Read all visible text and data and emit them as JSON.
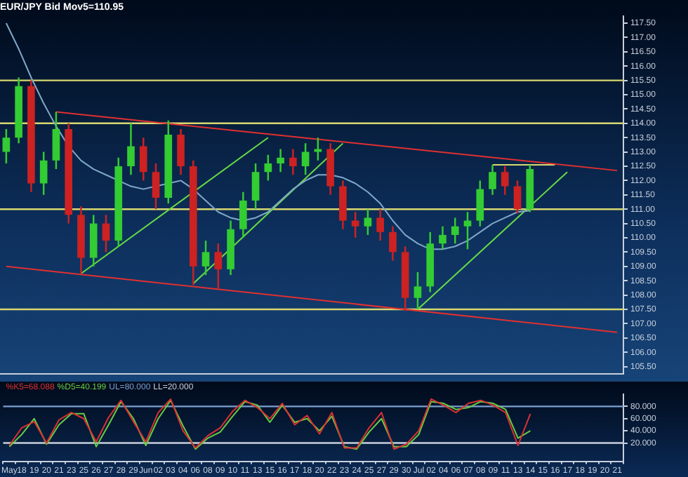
{
  "chart_data": [
    {
      "type": "candlestick",
      "title": "EUR/JPY Bid Mov5=110.95",
      "ohlc": [
        [
          113.0,
          113.8,
          112.6,
          113.5
        ],
        [
          113.5,
          115.6,
          113.3,
          115.3
        ],
        [
          115.3,
          115.5,
          111.6,
          111.9
        ],
        [
          111.9,
          113.0,
          111.5,
          112.7
        ],
        [
          112.7,
          114.4,
          112.4,
          113.8
        ],
        [
          113.8,
          114.0,
          110.5,
          110.8
        ],
        [
          110.8,
          111.1,
          108.75,
          109.3
        ],
        [
          109.3,
          110.8,
          109.0,
          110.5
        ],
        [
          110.5,
          110.8,
          109.5,
          109.9
        ],
        [
          109.9,
          112.8,
          109.7,
          112.5
        ],
        [
          112.5,
          114.0,
          112.2,
          113.2
        ],
        [
          113.2,
          113.5,
          112.0,
          112.3
        ],
        [
          112.3,
          112.6,
          111.0,
          111.4
        ],
        [
          111.4,
          114.1,
          111.2,
          113.6
        ],
        [
          113.6,
          113.8,
          112.2,
          112.5
        ],
        [
          112.5,
          112.7,
          108.35,
          109.0
        ],
        [
          109.0,
          109.9,
          108.7,
          109.5
        ],
        [
          109.5,
          109.8,
          108.2,
          108.9
        ],
        [
          108.9,
          110.6,
          108.7,
          110.3
        ],
        [
          110.3,
          111.6,
          110.0,
          111.3
        ],
        [
          111.3,
          112.6,
          111.0,
          112.3
        ],
        [
          112.3,
          112.9,
          112.0,
          112.6
        ],
        [
          112.6,
          113.1,
          112.3,
          112.8
        ],
        [
          112.8,
          113.1,
          112.2,
          112.5
        ],
        [
          112.5,
          113.3,
          112.2,
          113.0
        ],
        [
          113.0,
          113.5,
          112.7,
          113.1
        ],
        [
          113.1,
          113.3,
          111.5,
          111.8
        ],
        [
          111.8,
          112.0,
          110.3,
          110.6
        ],
        [
          110.6,
          110.9,
          110.0,
          110.4
        ],
        [
          110.4,
          111.0,
          110.1,
          110.7
        ],
        [
          110.7,
          111.0,
          109.9,
          110.2
        ],
        [
          110.2,
          110.4,
          109.2,
          109.5
        ],
        [
          109.5,
          109.7,
          107.45,
          107.9
        ],
        [
          107.9,
          108.8,
          107.5,
          108.3
        ],
        [
          108.3,
          110.2,
          108.1,
          109.8
        ],
        [
          109.8,
          110.4,
          109.6,
          110.1
        ],
        [
          110.1,
          110.7,
          109.8,
          110.4
        ],
        [
          110.4,
          110.9,
          109.6,
          110.6
        ],
        [
          110.6,
          112.0,
          110.4,
          111.7
        ],
        [
          111.7,
          112.55,
          111.5,
          112.3
        ],
        [
          112.3,
          112.5,
          111.5,
          111.8
        ],
        [
          111.8,
          112.0,
          110.85,
          111.0
        ],
        [
          111.0,
          112.55,
          110.9,
          112.4
        ],
        null,
        null,
        null,
        null,
        null,
        null,
        null
      ],
      "colors": [
        "#33cc33",
        "#33cc33",
        "#cc2222",
        "#33cc33",
        "#33cc33",
        "#cc2222",
        "#cc2222",
        "#33cc33",
        "#cc2222",
        "#33cc33",
        "#33cc33",
        "#cc2222",
        "#cc2222",
        "#33cc33",
        "#cc2222",
        "#cc2222",
        "#33cc33",
        "#cc2222",
        "#33cc33",
        "#33cc33",
        "#33cc33",
        "#33cc33",
        "#33cc33",
        "#cc2222",
        "#33cc33",
        "#33cc33",
        "#cc2222",
        "#cc2222",
        "#cc2222",
        "#33cc33",
        "#cc2222",
        "#cc2222",
        "#cc2222",
        "#33cc33",
        "#33cc33",
        "#33cc33",
        "#33cc33",
        "#33cc33",
        "#33cc33",
        "#33cc33",
        "#cc2222",
        "#cc2222",
        "#33cc33",
        null,
        null,
        null,
        null,
        null,
        null,
        null
      ],
      "series": [
        {
          "type": "line",
          "color": "#7fa8c8",
          "values": [
            117.5,
            116.6,
            115.6,
            114.7,
            113.9,
            113.2,
            112.7,
            112.4,
            112.2,
            112.0,
            111.8,
            111.7,
            111.8,
            111.9,
            112.0,
            111.7,
            111.3,
            110.9,
            110.7,
            110.6,
            110.7,
            110.9,
            111.3,
            111.7,
            112.0,
            112.2,
            112.2,
            112.1,
            111.9,
            111.6,
            111.2,
            110.6,
            110.1,
            109.8,
            109.6,
            109.6,
            109.7,
            109.9,
            110.2,
            110.5,
            110.7,
            110.9,
            110.95,
            null,
            null,
            null,
            null,
            null,
            null,
            null
          ]
        },
        {
          "type": "line",
          "color": "#e03030",
          "values": [
            null,
            null,
            null,
            null,
            114.4,
            null,
            null,
            null,
            null,
            null,
            null,
            null,
            null,
            null,
            null,
            null,
            null,
            null,
            null,
            null,
            null,
            null,
            null,
            null,
            null,
            null,
            null,
            null,
            null,
            null,
            null,
            null,
            null,
            null,
            null,
            null,
            null,
            null,
            null,
            null,
            null,
            null,
            null,
            null,
            null,
            null,
            null,
            null,
            null,
            112.35
          ]
        },
        {
          "type": "line",
          "color": "#e03030",
          "values": [
            109.0,
            null,
            null,
            null,
            null,
            null,
            null,
            null,
            null,
            null,
            null,
            null,
            null,
            null,
            null,
            null,
            null,
            null,
            null,
            null,
            null,
            null,
            null,
            null,
            null,
            null,
            null,
            null,
            null,
            null,
            null,
            null,
            null,
            null,
            null,
            null,
            null,
            null,
            null,
            null,
            null,
            null,
            null,
            null,
            null,
            null,
            null,
            null,
            null,
            106.7
          ]
        },
        {
          "type": "line",
          "color": "#66dd44",
          "values": [
            null,
            null,
            null,
            null,
            null,
            null,
            108.75,
            null,
            null,
            null,
            null,
            null,
            null,
            null,
            null,
            null,
            null,
            null,
            null,
            null,
            null,
            113.5,
            null,
            null,
            null,
            null,
            null,
            null,
            null,
            null,
            null,
            null,
            null,
            null,
            null,
            null,
            null,
            null,
            null,
            null,
            null,
            null,
            null,
            null,
            null,
            null,
            null,
            null,
            null,
            null
          ]
        },
        {
          "type": "line",
          "color": "#66dd44",
          "values": [
            null,
            null,
            null,
            null,
            null,
            null,
            null,
            null,
            null,
            null,
            null,
            null,
            null,
            null,
            null,
            108.4,
            null,
            null,
            null,
            null,
            null,
            null,
            null,
            null,
            null,
            null,
            null,
            113.3,
            null,
            null,
            null,
            null,
            null,
            null,
            null,
            null,
            null,
            null,
            null,
            null,
            null,
            null,
            null,
            null,
            null,
            null,
            null,
            null,
            null,
            null
          ]
        },
        {
          "type": "line",
          "color": "#66dd44",
          "values": [
            null,
            null,
            null,
            null,
            null,
            null,
            null,
            null,
            null,
            null,
            null,
            null,
            null,
            null,
            null,
            null,
            null,
            null,
            null,
            null,
            null,
            null,
            null,
            null,
            null,
            null,
            null,
            null,
            null,
            null,
            null,
            null,
            null,
            107.5,
            null,
            null,
            null,
            null,
            null,
            null,
            null,
            null,
            null,
            null,
            null,
            112.3,
            null,
            null,
            null,
            null
          ]
        },
        {
          "type": "line",
          "color": "#d8d870",
          "values": [
            null,
            null,
            null,
            null,
            null,
            null,
            null,
            null,
            null,
            null,
            null,
            null,
            null,
            null,
            null,
            null,
            null,
            null,
            null,
            null,
            null,
            null,
            null,
            null,
            null,
            null,
            null,
            null,
            null,
            null,
            null,
            null,
            null,
            null,
            null,
            null,
            null,
            null,
            null,
            112.55,
            null,
            null,
            null,
            null,
            112.55,
            null,
            null,
            null,
            null,
            null
          ]
        }
      ],
      "ref_lines": [
        {
          "axis": "y",
          "value": 115.5,
          "color": "#d8d870"
        },
        {
          "axis": "y",
          "value": 114.0,
          "color": "#d8d870"
        },
        {
          "axis": "y",
          "value": 111.0,
          "color": "#d8d870"
        },
        {
          "axis": "y",
          "value": 107.5,
          "color": "#d8d870"
        }
      ],
      "ylim": [
        105.25,
        117.75
      ],
      "yticks": [
        {
          "value": 105.5,
          "label": "105.50"
        },
        {
          "value": 106,
          "label": "106.00"
        },
        {
          "value": 106.5,
          "label": "106.50"
        },
        {
          "value": 107,
          "label": "107.00"
        },
        {
          "value": 107.5,
          "label": "107.50"
        },
        {
          "value": 108,
          "label": "108.00"
        },
        {
          "value": 108.5,
          "label": "108.50"
        },
        {
          "value": 109,
          "label": "109.00"
        },
        {
          "value": 109.5,
          "label": "109.50"
        },
        {
          "value": 110,
          "label": "110.00"
        },
        {
          "value": 110.5,
          "label": "110.50"
        },
        {
          "value": 111,
          "label": "111.00"
        },
        {
          "value": 111.5,
          "label": "111.50"
        },
        {
          "value": 112,
          "label": "112.00"
        },
        {
          "value": 112.5,
          "label": "112.50"
        },
        {
          "value": 113,
          "label": "113.00"
        },
        {
          "value": 113.5,
          "label": "113.50"
        },
        {
          "value": 114,
          "label": "114.00"
        },
        {
          "value": 114.5,
          "label": "114.50"
        },
        {
          "value": 115,
          "label": "115.00"
        },
        {
          "value": 115.5,
          "label": "115.50"
        },
        {
          "value": 116,
          "label": "116.00"
        },
        {
          "value": 116.5,
          "label": "116.50"
        },
        {
          "value": 117,
          "label": "117.00"
        },
        {
          "value": 117.5,
          "label": "117.50"
        }
      ],
      "tick_labels": "y"
    },
    {
      "type": "line",
      "categories": [
        "May",
        "18",
        "19",
        "20",
        "21",
        "23",
        "25",
        "26",
        "27",
        "28",
        "29",
        "Jun",
        "02",
        "03",
        "04",
        "06",
        "08",
        "09",
        "10",
        "11",
        "13",
        "15",
        "16",
        "17",
        "18",
        "20",
        "22",
        "23",
        "24",
        "25",
        "27",
        "29",
        "30",
        "Jul",
        "02",
        "04",
        "06",
        "07",
        "08",
        "09",
        "11",
        "13",
        "14",
        "15",
        "16",
        "17",
        "18",
        "19",
        "20",
        "21"
      ],
      "series": [
        {
          "name": "%K5=68.088",
          "color": "#dd3030",
          "values": [
            16,
            45,
            55,
            20,
            58,
            70,
            60,
            22,
            62,
            90,
            55,
            22,
            70,
            92,
            40,
            12,
            32,
            45,
            72,
            90,
            78,
            60,
            85,
            50,
            65,
            35,
            70,
            12,
            12,
            45,
            70,
            10,
            18,
            40,
            92,
            82,
            70,
            85,
            90,
            82,
            70,
            16,
            68,
            null,
            null,
            null,
            null,
            null,
            null,
            null
          ]
        },
        {
          "name": "%D5=40.199",
          "color": "#66cc44",
          "values": [
            14,
            34,
            60,
            18,
            50,
            68,
            68,
            14,
            50,
            88,
            60,
            16,
            60,
            90,
            48,
            10,
            28,
            38,
            64,
            88,
            82,
            54,
            82,
            54,
            60,
            40,
            64,
            14,
            10,
            38,
            60,
            14,
            14,
            34,
            88,
            85,
            75,
            78,
            88,
            85,
            75,
            28,
            40,
            null,
            null,
            null,
            null,
            null,
            null,
            null
          ]
        }
      ],
      "ref_lines": [
        {
          "axis": "y",
          "value": 80,
          "label": "UL=80.000",
          "color": "#7aa0d0"
        },
        {
          "axis": "y",
          "value": 20,
          "label": "LL=20.000",
          "color": "#c8d0dc"
        }
      ],
      "ylim": [
        -10,
        100
      ],
      "yticks": [
        {
          "value": 20,
          "label": "20.000"
        },
        {
          "value": 40,
          "label": "40.000"
        },
        {
          "value": 60,
          "label": "60.000"
        },
        {
          "value": 80,
          "label": "80.000"
        }
      ],
      "legend": "top left"
    }
  ]
}
